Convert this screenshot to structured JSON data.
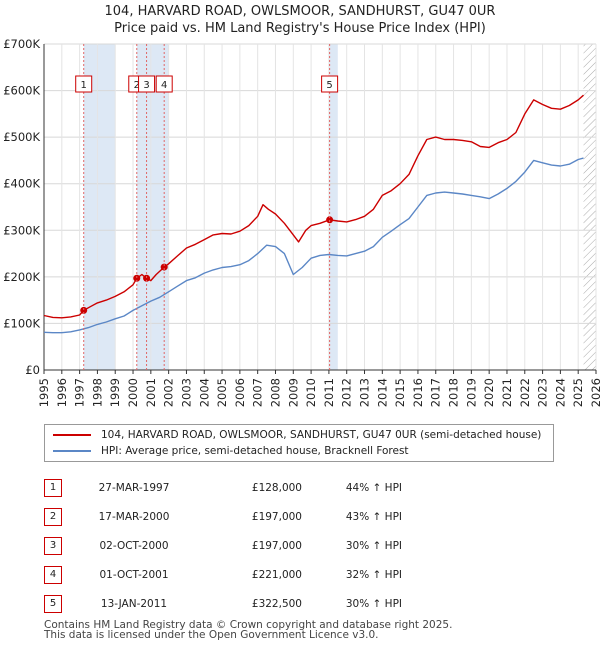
{
  "title_line1": "104, HARVARD ROAD, OWLSMOOR, SANDHURST, GU47 0UR",
  "title_line2": "Price paid vs. HM Land Registry's House Price Index (HPI)",
  "colors": {
    "price_paid": "#cc0000",
    "hpi": "#5b87c6",
    "highlight": "#dde8f5",
    "dash": "#e06666"
  },
  "chart_data": {
    "type": "line",
    "xlim": [
      1995,
      2026
    ],
    "ylim": [
      0,
      700000
    ],
    "yticks": [
      0,
      100000,
      200000,
      300000,
      400000,
      500000,
      600000,
      700000
    ],
    "ytick_labels": [
      "£0",
      "£100K",
      "£200K",
      "£300K",
      "£400K",
      "£500K",
      "£600K",
      "£700K"
    ],
    "xticks": [
      "1995",
      "1996",
      "1997",
      "1998",
      "1999",
      "2000",
      "2001",
      "2002",
      "2003",
      "2004",
      "2005",
      "2006",
      "2007",
      "2008",
      "2009",
      "2010",
      "2011",
      "2012",
      "2013",
      "2014",
      "2015",
      "2016",
      "2017",
      "2018",
      "2019",
      "2020",
      "2021",
      "2022",
      "2023",
      "2024",
      "2025",
      "2026"
    ],
    "shaded_periods": [
      [
        1997.23,
        1999.0
      ],
      [
        2000.21,
        2002.0
      ],
      [
        2011.04,
        2011.5
      ]
    ],
    "hatch_start": 2025.3,
    "series": [
      {
        "name": "104, HARVARD ROAD, OWLSMOOR, SANDHURST, GU47 0UR (semi-detached house)",
        "x": [
          1995.0,
          1995.5,
          1996.0,
          1996.5,
          1997.0,
          1997.23,
          1997.6,
          1998.0,
          1998.5,
          1999.0,
          1999.5,
          2000.0,
          2000.21,
          2000.5,
          2000.76,
          2001.0,
          2001.3,
          2001.75,
          2002.0,
          2002.5,
          2003.0,
          2003.5,
          2004.0,
          2004.5,
          2005.0,
          2005.5,
          2006.0,
          2006.5,
          2007.0,
          2007.3,
          2007.6,
          2008.0,
          2008.5,
          2009.0,
          2009.3,
          2009.7,
          2010.0,
          2010.5,
          2011.04,
          2011.5,
          2012.0,
          2012.5,
          2013.0,
          2013.5,
          2014.0,
          2014.5,
          2015.0,
          2015.5,
          2016.0,
          2016.5,
          2017.0,
          2017.5,
          2018.0,
          2018.5,
          2019.0,
          2019.5,
          2020.0,
          2020.5,
          2021.0,
          2021.5,
          2022.0,
          2022.5,
          2023.0,
          2023.5,
          2024.0,
          2024.5,
          2025.0,
          2025.3
        ],
        "values": [
          117000,
          113000,
          112000,
          114000,
          118000,
          128000,
          136000,
          144000,
          150000,
          158000,
          168000,
          183000,
          197000,
          205000,
          197000,
          192000,
          205000,
          221000,
          228000,
          245000,
          262000,
          270000,
          280000,
          290000,
          293000,
          292000,
          298000,
          310000,
          330000,
          355000,
          345000,
          335000,
          315000,
          290000,
          275000,
          300000,
          310000,
          315000,
          322500,
          320000,
          318000,
          323000,
          330000,
          345000,
          375000,
          385000,
          400000,
          420000,
          460000,
          495000,
          500000,
          495000,
          495000,
          493000,
          490000,
          480000,
          478000,
          488000,
          495000,
          510000,
          550000,
          580000,
          570000,
          562000,
          560000,
          568000,
          580000,
          590000
        ]
      },
      {
        "name": "HPI: Average price, semi-detached house, Bracknell Forest",
        "x": [
          1995.0,
          1995.5,
          1996.0,
          1996.5,
          1997.0,
          1997.5,
          1998.0,
          1998.5,
          1999.0,
          1999.5,
          2000.0,
          2000.5,
          2001.0,
          2001.5,
          2002.0,
          2002.5,
          2003.0,
          2003.5,
          2004.0,
          2004.5,
          2005.0,
          2005.5,
          2006.0,
          2006.5,
          2007.0,
          2007.5,
          2008.0,
          2008.5,
          2009.0,
          2009.5,
          2010.0,
          2010.5,
          2011.0,
          2011.5,
          2012.0,
          2012.5,
          2013.0,
          2013.5,
          2014.0,
          2014.5,
          2015.0,
          2015.5,
          2016.0,
          2016.5,
          2017.0,
          2017.5,
          2018.0,
          2018.5,
          2019.0,
          2019.5,
          2020.0,
          2020.5,
          2021.0,
          2021.5,
          2022.0,
          2022.5,
          2023.0,
          2023.5,
          2024.0,
          2024.5,
          2025.0,
          2025.3
        ],
        "values": [
          81000,
          80000,
          80000,
          82000,
          86000,
          91000,
          98000,
          103000,
          110000,
          116000,
          128000,
          138000,
          148000,
          156000,
          168000,
          180000,
          192000,
          198000,
          208000,
          215000,
          220000,
          222000,
          226000,
          235000,
          250000,
          268000,
          265000,
          250000,
          205000,
          220000,
          240000,
          246000,
          248000,
          246000,
          245000,
          250000,
          255000,
          265000,
          285000,
          298000,
          312000,
          325000,
          350000,
          375000,
          380000,
          382000,
          380000,
          378000,
          375000,
          372000,
          368000,
          378000,
          390000,
          405000,
          425000,
          450000,
          445000,
          440000,
          438000,
          442000,
          452000,
          455000
        ]
      }
    ],
    "sales": [
      {
        "n": "1",
        "x": 1997.23,
        "price": 128000
      },
      {
        "n": "2",
        "x": 2000.21,
        "price": 197000
      },
      {
        "n": "3",
        "x": 2000.76,
        "price": 197000
      },
      {
        "n": "4",
        "x": 2001.75,
        "price": 221000
      },
      {
        "n": "5",
        "x": 2011.04,
        "price": 322500
      }
    ]
  },
  "legend": {
    "price_paid": "104, HARVARD ROAD, OWLSMOOR, SANDHURST, GU47 0UR (semi-detached house)",
    "hpi": "HPI: Average price, semi-detached house, Bracknell Forest"
  },
  "transactions": [
    {
      "n": "1",
      "date": "27-MAR-1997",
      "price": "£128,000",
      "hpi": "44% ↑ HPI"
    },
    {
      "n": "2",
      "date": "17-MAR-2000",
      "price": "£197,000",
      "hpi": "43% ↑ HPI"
    },
    {
      "n": "3",
      "date": "02-OCT-2000",
      "price": "£197,000",
      "hpi": "30% ↑ HPI"
    },
    {
      "n": "4",
      "date": "01-OCT-2001",
      "price": "£221,000",
      "hpi": "32% ↑ HPI"
    },
    {
      "n": "5",
      "date": "13-JAN-2011",
      "price": "£322,500",
      "hpi": "30% ↑ HPI"
    }
  ],
  "footer": {
    "line1": "Contains HM Land Registry data © Crown copyright and database right 2025.",
    "line2": "This data is licensed under the Open Government Licence v3.0."
  }
}
